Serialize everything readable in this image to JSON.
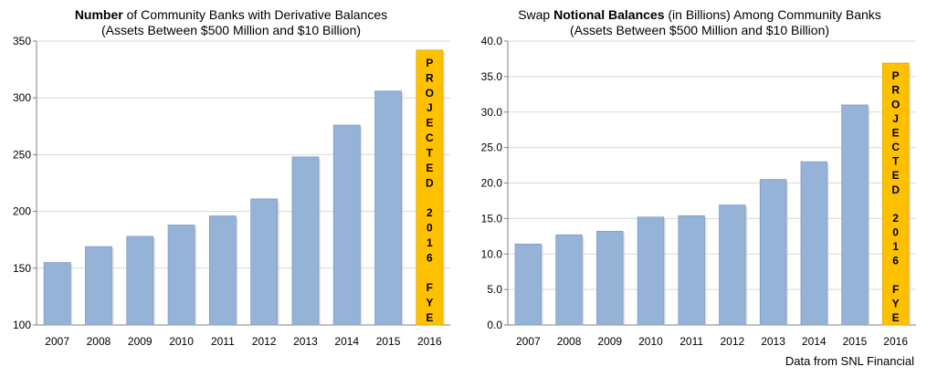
{
  "chart_data": [
    {
      "type": "bar",
      "title_bold": "Number",
      "title_rest": " of Community Banks with Derivative Balances",
      "subtitle": "(Assets Between $500 Million and $10 Billion)",
      "categories": [
        "2007",
        "2008",
        "2009",
        "2010",
        "2011",
        "2012",
        "2013",
        "2014",
        "2015",
        "2016"
      ],
      "values": [
        155,
        169,
        178,
        188,
        196,
        211,
        248,
        276,
        306,
        342
      ],
      "projected_index": 9,
      "projected_label": "PROJECTED 2016 FYE",
      "ylim": [
        100,
        350
      ],
      "yticks": [
        100,
        150,
        200,
        250,
        300,
        350
      ],
      "ytick_decimals": 0,
      "xlabel": "",
      "ylabel": "",
      "grid": true
    },
    {
      "type": "bar",
      "title_pre": "Swap ",
      "title_bold": "Notional Balances",
      "title_rest": " (in Billions) Among Community Banks",
      "subtitle": "(Assets Between $500 Million and $10 Billion)",
      "categories": [
        "2007",
        "2008",
        "2009",
        "2010",
        "2011",
        "2012",
        "2013",
        "2014",
        "2015",
        "2016"
      ],
      "values": [
        11.4,
        12.7,
        13.2,
        15.2,
        15.4,
        16.9,
        20.5,
        23.0,
        31.0,
        36.9
      ],
      "projected_index": 9,
      "projected_label": "PROJECTED 2016 FYE",
      "ylim": [
        0,
        40
      ],
      "yticks": [
        0,
        5,
        10,
        15,
        20,
        25,
        30,
        35,
        40
      ],
      "ytick_decimals": 1,
      "xlabel": "",
      "ylabel": "",
      "grid": true
    }
  ],
  "source_text": "Data from SNL Financial",
  "colors": {
    "bar": "#95b3d7",
    "bar_edge": "#7f9dc4",
    "projected": "#ffc000",
    "projected_edge": "#e0a800",
    "grid": "#d9d9d9",
    "axis": "#808080"
  }
}
